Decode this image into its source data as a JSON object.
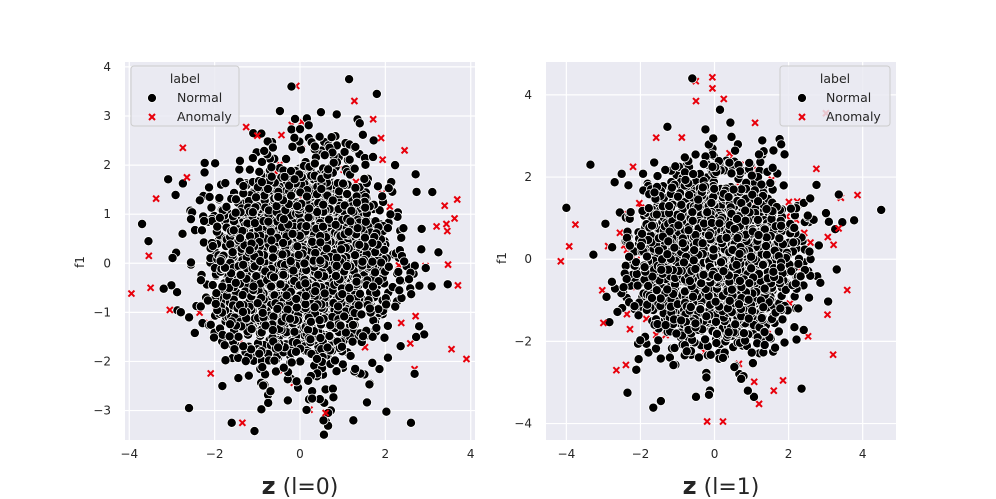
{
  "chart_data": [
    {
      "type": "scatter",
      "ylabel": "f1",
      "xlabel_symbol": "z",
      "xlabel_suffix": " (l=0)",
      "xlim": [
        -4.1,
        4.1
      ],
      "ylim": [
        -3.6,
        4.1
      ],
      "xticks": [
        -4,
        -2,
        0,
        2,
        4
      ],
      "yticks": [
        -3,
        -2,
        -1,
        0,
        1,
        2,
        3,
        4
      ],
      "grid": true,
      "legend": {
        "title": "label",
        "placement": "top-left",
        "entries": [
          "Normal",
          "Anomaly"
        ]
      },
      "series": [
        {
          "name": "Normal",
          "marker": "circle",
          "color": "#000000",
          "distribution": {
            "n": 3000,
            "mean": [
              0,
              0
            ],
            "std": [
              1.0,
              1.0
            ]
          },
          "points": [
            [
              1.15,
              3.75
            ],
            [
              -0.2,
              3.6
            ],
            [
              1.8,
              3.45
            ],
            [
              -3.7,
              0.8
            ],
            [
              -3.55,
              0.45
            ],
            [
              2.6,
              -3.25
            ],
            [
              -1.6,
              -3.25
            ],
            [
              0.55,
              -3.2
            ],
            [
              1.25,
              -3.2
            ],
            [
              3.1,
              1.45
            ],
            [
              -2.6,
              -2.95
            ],
            [
              2.85,
              0.7
            ]
          ]
        },
        {
          "name": "Anomaly",
          "marker": "x",
          "color": "#e8000b",
          "distribution": {
            "n": 110,
            "mean": [
              0,
              0
            ],
            "std": [
              1.7,
              1.5
            ]
          },
          "points": [
            [
              -3.5,
              -0.5
            ],
            [
              3.9,
              -1.95
            ],
            [
              3.55,
              -1.75
            ],
            [
              3.7,
              -0.45
            ],
            [
              -3.05,
              -0.95
            ],
            [
              -2.65,
              1.75
            ],
            [
              -1.35,
              -3.25
            ],
            [
              1.9,
              2.55
            ],
            [
              0.6,
              -3.05
            ],
            [
              3.2,
              0.75
            ],
            [
              -1.0,
              2.6
            ],
            [
              2.45,
              2.3
            ]
          ]
        }
      ]
    },
    {
      "type": "scatter",
      "ylabel": "f1",
      "xlabel_symbol": "z",
      "xlabel_suffix": " (l=1)",
      "xlim": [
        -4.55,
        4.9
      ],
      "ylim": [
        -4.4,
        4.8
      ],
      "xticks": [
        -4,
        -2,
        0,
        2,
        4
      ],
      "yticks": [
        -4,
        -2,
        0,
        2,
        4
      ],
      "grid": true,
      "legend": {
        "title": "label",
        "placement": "top-right",
        "entries": [
          "Normal",
          "Anomaly"
        ]
      },
      "series": [
        {
          "name": "Normal",
          "marker": "circle",
          "color": "#000000",
          "distribution": {
            "n": 2900,
            "mean": [
              0,
              0
            ],
            "std": [
              1.0,
              1.0
            ]
          },
          "points": [
            [
              -0.6,
              4.4
            ],
            [
              4.5,
              1.2
            ],
            [
              -4.0,
              1.25
            ],
            [
              -3.35,
              2.3
            ],
            [
              -2.35,
              -3.25
            ],
            [
              -0.5,
              -3.35
            ],
            [
              -0.15,
              -3.3
            ],
            [
              2.35,
              -3.15
            ],
            [
              3.45,
              0.9
            ],
            [
              3.3,
              -0.25
            ],
            [
              1.2,
              2.55
            ],
            [
              0.9,
              -3.2
            ]
          ]
        },
        {
          "name": "Anomaly",
          "marker": "x",
          "color": "#e8000b",
          "distribution": {
            "n": 110,
            "mean": [
              0,
              0
            ],
            "std": [
              1.6,
              1.7
            ]
          },
          "points": [
            [
              -4.15,
              -0.05
            ],
            [
              0.25,
              3.9
            ],
            [
              -0.5,
              3.85
            ],
            [
              -0.2,
              -3.95
            ],
            [
              3.05,
              -1.35
            ],
            [
              3.35,
              0.75
            ],
            [
              -3.0,
              -1.55
            ],
            [
              2.75,
              2.2
            ],
            [
              1.85,
              -2.95
            ],
            [
              -2.65,
              -2.7
            ],
            [
              -2.2,
              2.25
            ],
            [
              1.6,
              -3.2
            ]
          ]
        }
      ]
    }
  ]
}
